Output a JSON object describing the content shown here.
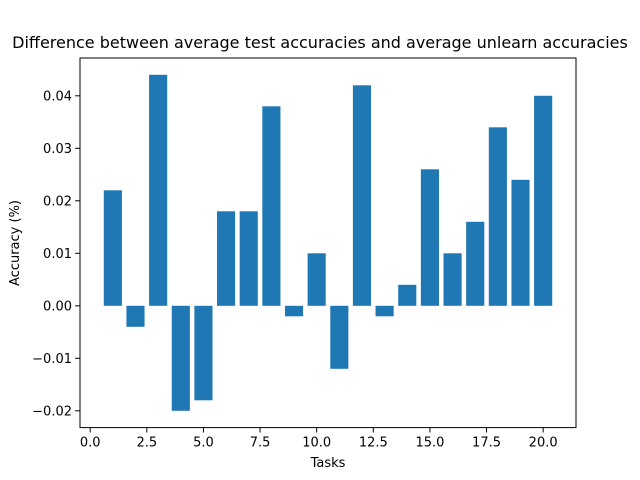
{
  "chart_data": {
    "type": "bar",
    "title": "Difference between average test accuracies and average unlearn accuracies",
    "xlabel": "Tasks",
    "ylabel": "Accuracy (%)",
    "x": [
      1,
      2,
      3,
      4,
      5,
      6,
      7,
      8,
      9,
      10,
      11,
      12,
      13,
      14,
      15,
      16,
      17,
      18,
      19,
      20
    ],
    "values": [
      0.022,
      -0.004,
      0.044,
      -0.02,
      -0.018,
      0.018,
      0.018,
      0.038,
      -0.002,
      0.01,
      -0.012,
      0.042,
      -0.002,
      0.004,
      0.026,
      0.01,
      0.016,
      0.034,
      0.024,
      0.04
    ],
    "xlim": [
      -0.45,
      21.45
    ],
    "ylim": [
      -0.0232,
      0.0472
    ],
    "xticks": [
      0.0,
      2.5,
      5.0,
      7.5,
      10.0,
      12.5,
      15.0,
      17.5,
      20.0
    ],
    "xtick_labels": [
      "0.0",
      "2.5",
      "5.0",
      "7.5",
      "10.0",
      "12.5",
      "15.0",
      "17.5",
      "20.0"
    ],
    "yticks": [
      -0.02,
      -0.01,
      0.0,
      0.01,
      0.02,
      0.03,
      0.04
    ],
    "ytick_labels": [
      "−0.02",
      "−0.01",
      "0.00",
      "0.01",
      "0.02",
      "0.03",
      "0.04"
    ],
    "bar_color": "#1f77b4",
    "grid": false,
    "legend": "none"
  }
}
